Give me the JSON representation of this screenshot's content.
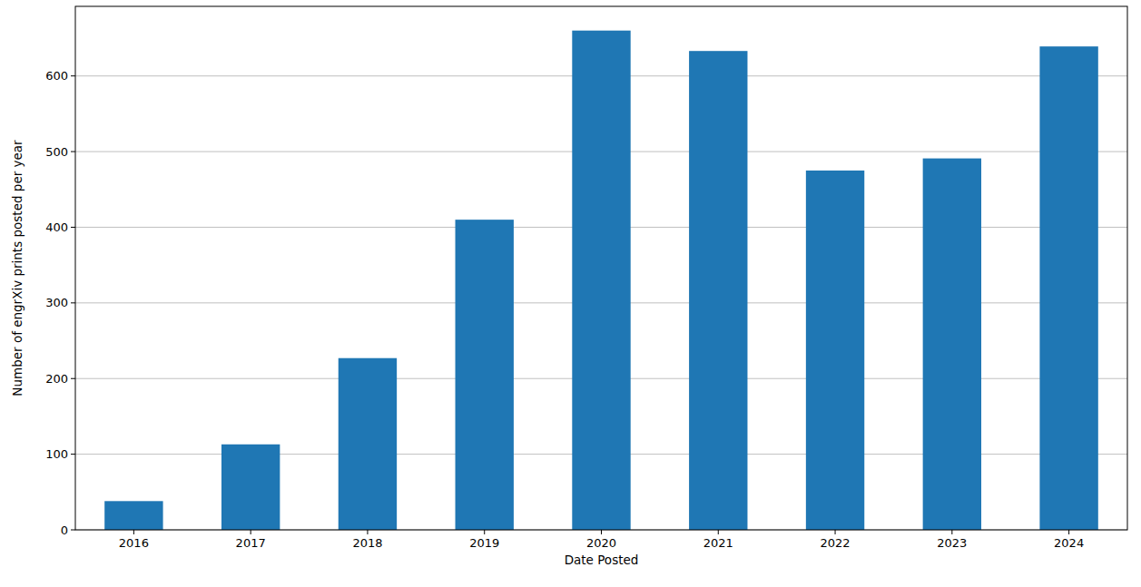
{
  "chart_data": {
    "type": "bar",
    "x_label": "Date Posted",
    "y_label": "Number of engrXiv prints posted per year",
    "categories": [
      "2016",
      "2017",
      "2018",
      "2019",
      "2020",
      "2021",
      "2022",
      "2023",
      "2024"
    ],
    "values": [
      38,
      113,
      227,
      410,
      660,
      633,
      475,
      491,
      639
    ],
    "color": "#1f77b4",
    "ylim": [
      0,
      692
    ],
    "yticks": [
      0,
      100,
      200,
      300,
      400,
      500,
      600
    ],
    "grid": true
  }
}
